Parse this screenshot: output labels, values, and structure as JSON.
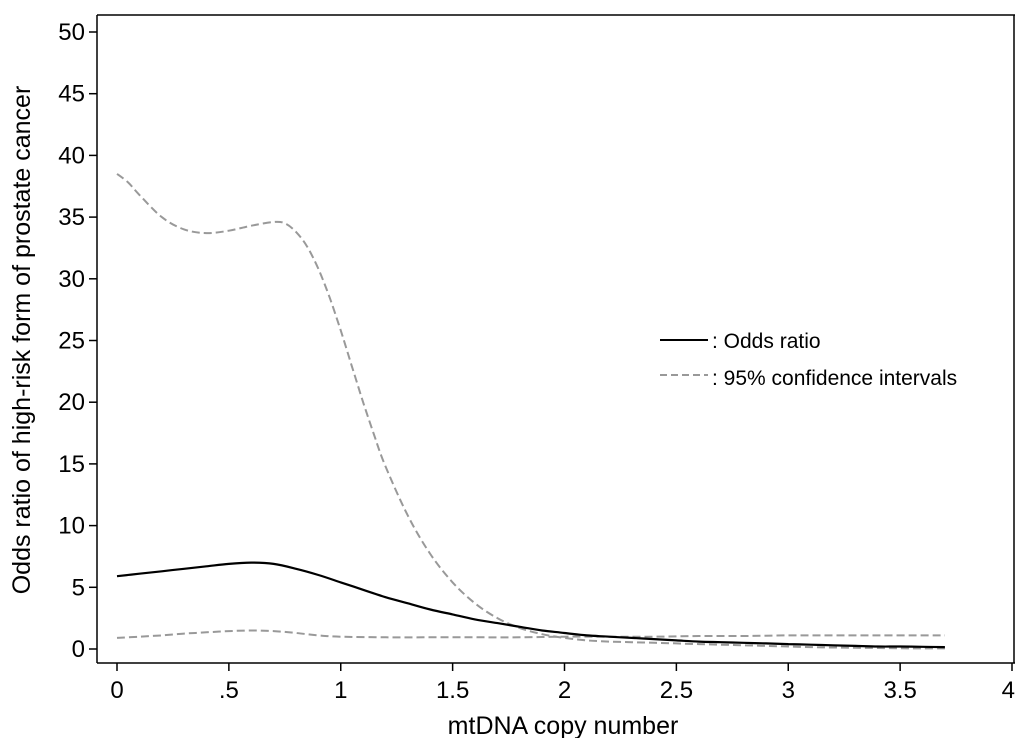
{
  "chart_data": {
    "type": "line",
    "title": "",
    "xlabel": "mtDNA copy number",
    "ylabel": "Odds ratio of high-risk form of prostate cancer",
    "xlim": [
      0,
      4
    ],
    "ylim": [
      0,
      50
    ],
    "x_ticks": [
      0,
      0.5,
      1,
      1.5,
      2,
      2.5,
      3,
      3.5,
      4
    ],
    "x_tick_labels": [
      "0",
      ".5",
      "1",
      "1.5",
      "2",
      "2.5",
      "3",
      "3.5",
      "4"
    ],
    "y_ticks": [
      0,
      5,
      10,
      15,
      20,
      25,
      30,
      35,
      40,
      45,
      50
    ],
    "y_tick_labels": [
      "0",
      "5",
      "10",
      "15",
      "20",
      "25",
      "30",
      "35",
      "40",
      "45",
      "50"
    ],
    "grid": false,
    "legend_position": "right",
    "series": [
      {
        "name": ": Odds ratio",
        "style": "solid",
        "color": "#000000",
        "x": [
          0,
          0.1,
          0.2,
          0.3,
          0.4,
          0.5,
          0.6,
          0.7,
          0.8,
          0.9,
          1.0,
          1.1,
          1.2,
          1.3,
          1.4,
          1.5,
          1.6,
          1.7,
          1.8,
          1.9,
          2.0,
          2.1,
          2.2,
          2.3,
          2.4,
          2.5,
          2.6,
          2.7,
          2.8,
          2.9,
          3.0,
          3.1,
          3.2,
          3.3,
          3.4,
          3.5,
          3.6,
          3.7
        ],
        "y": [
          5.9,
          6.1,
          6.3,
          6.5,
          6.7,
          6.9,
          7.0,
          6.9,
          6.5,
          6.0,
          5.4,
          4.8,
          4.2,
          3.7,
          3.2,
          2.8,
          2.4,
          2.1,
          1.8,
          1.5,
          1.3,
          1.1,
          1.0,
          0.9,
          0.8,
          0.7,
          0.6,
          0.55,
          0.5,
          0.45,
          0.4,
          0.35,
          0.3,
          0.25,
          0.2,
          0.2,
          0.18,
          0.15
        ]
      },
      {
        "name": ": 95% confidence intervals",
        "style": "dashed",
        "color": "#999999",
        "x": [
          0,
          0.05,
          0.1,
          0.2,
          0.3,
          0.4,
          0.5,
          0.6,
          0.7,
          0.75,
          0.8,
          0.85,
          0.9,
          0.95,
          1.0,
          1.05,
          1.1,
          1.15,
          1.2,
          1.3,
          1.4,
          1.5,
          1.6,
          1.7,
          1.8,
          1.9,
          2.0,
          2.1,
          2.2,
          2.3,
          2.4,
          2.5,
          2.6,
          2.7,
          2.8,
          2.9,
          3.0,
          3.1,
          3.2,
          3.3,
          3.4,
          3.5,
          3.6,
          3.7
        ],
        "y": [
          38.5,
          37.8,
          36.8,
          35.0,
          34.0,
          33.7,
          33.9,
          34.3,
          34.6,
          34.5,
          33.8,
          32.6,
          30.8,
          28.5,
          25.8,
          22.9,
          20.0,
          17.3,
          14.8,
          10.8,
          7.7,
          5.4,
          3.7,
          2.5,
          1.7,
          1.2,
          0.9,
          0.7,
          0.6,
          0.55,
          0.5,
          0.45,
          0.4,
          0.35,
          0.3,
          0.25,
          0.2,
          0.15,
          0.12,
          0.1,
          0.08,
          0.06,
          0.05,
          0.05
        ]
      },
      {
        "name": ": 95% confidence intervals",
        "style": "dashed",
        "color": "#999999",
        "x": [
          0,
          0.1,
          0.2,
          0.3,
          0.4,
          0.5,
          0.6,
          0.7,
          0.8,
          0.9,
          1.0,
          1.2,
          1.4,
          1.6,
          1.8,
          2.0,
          2.2,
          2.4,
          2.6,
          2.8,
          3.0,
          3.2,
          3.4,
          3.6,
          3.7
        ],
        "y": [
          0.9,
          1.0,
          1.1,
          1.25,
          1.35,
          1.45,
          1.5,
          1.45,
          1.3,
          1.1,
          1.0,
          0.95,
          0.95,
          0.95,
          0.95,
          1.0,
          1.0,
          1.0,
          1.05,
          1.05,
          1.1,
          1.1,
          1.1,
          1.1,
          1.1
        ]
      }
    ]
  }
}
